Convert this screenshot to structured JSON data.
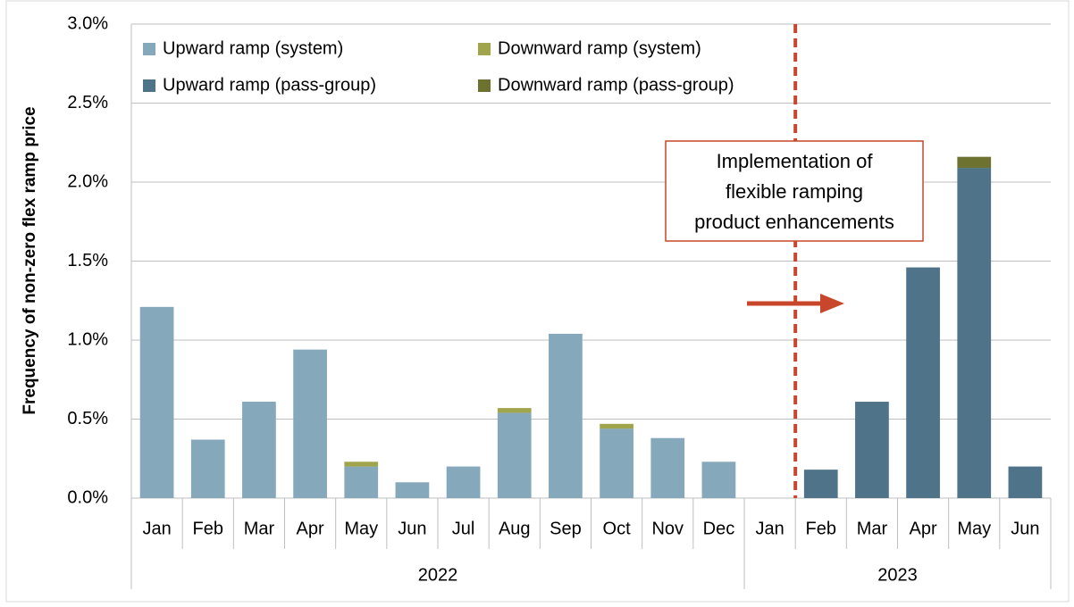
{
  "chart_data": {
    "type": "stacked_bar",
    "ylabel": "Frequency of non-zero flex ramp price",
    "groups": [
      {
        "name": "2022",
        "categories": [
          "Jan",
          "Feb",
          "Mar",
          "Apr",
          "May",
          "Jun",
          "Jul",
          "Aug",
          "Sep",
          "Oct",
          "Nov",
          "Dec"
        ]
      },
      {
        "name": "2023",
        "categories": [
          "Jan",
          "Feb",
          "Mar",
          "Apr",
          "May",
          "Jun"
        ]
      }
    ],
    "series": [
      {
        "name": "Upward ramp (system)",
        "color": "#86a8bb",
        "values": [
          1.21,
          0.37,
          0.61,
          0.94,
          0.2,
          0.1,
          0.2,
          0.54,
          1.04,
          0.44,
          0.38,
          0.23,
          null,
          null,
          null,
          null,
          null,
          null
        ]
      },
      {
        "name": "Downward ramp (system)",
        "color": "#a0a44a",
        "values": [
          0,
          0,
          0,
          0,
          0.03,
          0,
          0,
          0.03,
          0,
          0.03,
          0,
          0,
          null,
          null,
          null,
          null,
          null,
          null
        ]
      },
      {
        "name": "Upward ramp (pass-group)",
        "color": "#4f7489",
        "values": [
          null,
          null,
          null,
          null,
          null,
          null,
          null,
          null,
          null,
          null,
          null,
          null,
          0,
          0.18,
          0.61,
          1.46,
          2.09,
          0.2
        ]
      },
      {
        "name": "Downward ramp (pass-group)",
        "color": "#6e7231",
        "values": [
          null,
          null,
          null,
          null,
          null,
          null,
          null,
          null,
          null,
          null,
          null,
          null,
          0,
          0,
          0,
          0,
          0.07,
          0
        ]
      }
    ],
    "ylim": [
      0,
      3
    ],
    "yticks": [
      {
        "value": 0,
        "label": "0.0%"
      },
      {
        "value": 0.5,
        "label": "0.5%"
      },
      {
        "value": 1,
        "label": "1.0%"
      },
      {
        "value": 1.5,
        "label": "1.5%"
      },
      {
        "value": 2,
        "label": "2.0%"
      },
      {
        "value": 2.5,
        "label": "2.5%"
      },
      {
        "value": 3,
        "label": "3.0%"
      }
    ],
    "grid": true,
    "legend": "top-left",
    "annotation": {
      "lines": [
        "Implementation of",
        "flexible ramping",
        "product enhancements"
      ],
      "color": "#c8472a"
    }
  }
}
